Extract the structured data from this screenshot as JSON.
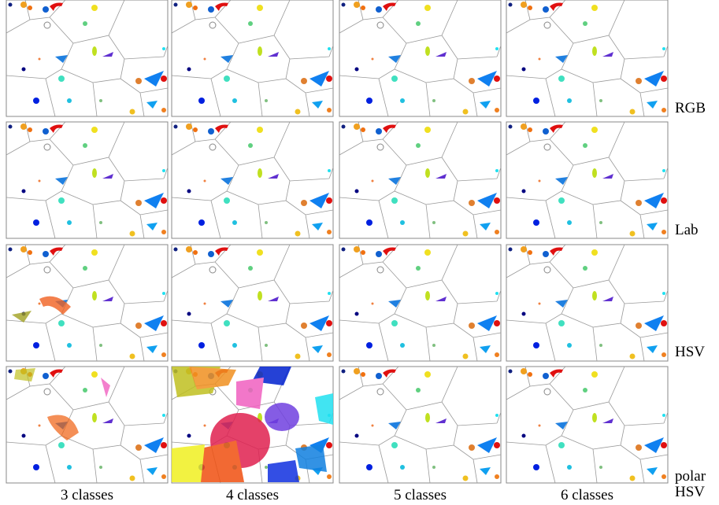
{
  "columns": [
    "3 classes",
    "4 classes",
    "5 classes",
    "6 classes"
  ],
  "rows": [
    "RGB",
    "Lab",
    "HSV",
    "polar HSV"
  ]
}
